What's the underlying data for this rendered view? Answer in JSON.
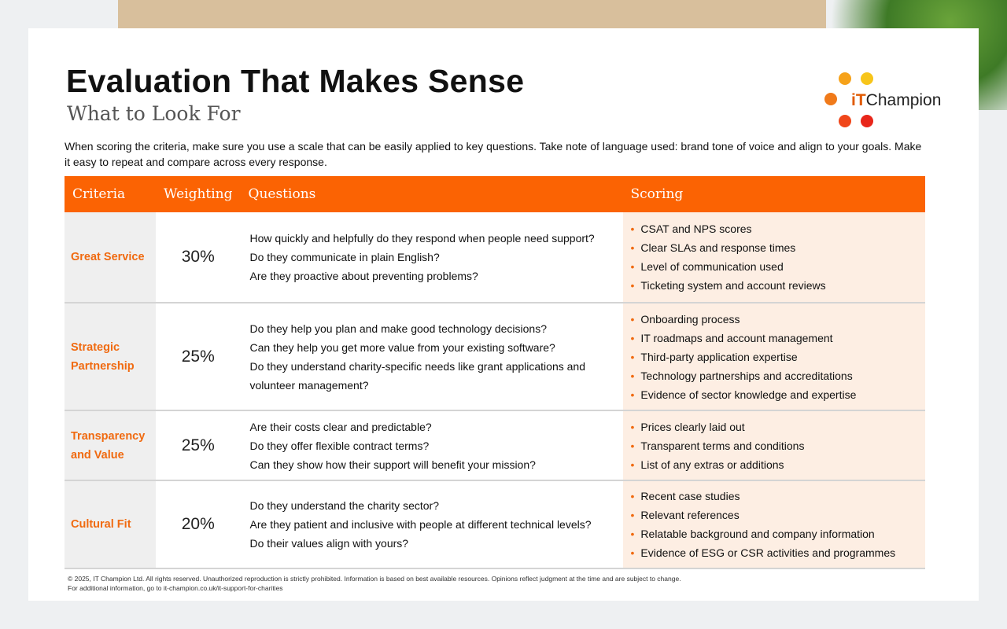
{
  "header": {
    "title": "Evaluation That Makes Sense",
    "subtitle": "What to Look For",
    "logo": "iT Champion",
    "intro": "When scoring the criteria, make sure you use a scale that can be easily applied to key questions. Take note of language used: brand tone of voice and align to your goals. Make it easy to repeat and compare across every response."
  },
  "colors": {
    "accent": "#fb6303",
    "scoring_bg": "#fdeee3",
    "criteria_bg": "#efefef"
  },
  "table": {
    "columns": [
      "Criteria",
      "Weighting",
      "Questions",
      "Scoring"
    ],
    "rows": [
      {
        "criteria": "Great Service",
        "weighting": "30%",
        "questions": [
          "How quickly and helpfully do they respond when people need support?",
          "Do they communicate in plain English?",
          "Are they proactive about preventing problems?"
        ],
        "scoring": [
          "CSAT and NPS scores",
          "Clear SLAs and response times",
          "Level of communication used",
          "Ticketing system and account reviews"
        ]
      },
      {
        "criteria": "Strategic Partnership",
        "weighting": "25%",
        "questions": [
          "Do they help you plan and make good technology decisions?",
          "Can they help you get more value from your existing software?",
          "Do they understand charity-specific needs like grant applications and volunteer management?"
        ],
        "scoring": [
          "Onboarding process",
          "IT roadmaps and account management",
          "Third-party application expertise",
          "Technology partnerships and accreditations",
          "Evidence of sector knowledge and expertise"
        ]
      },
      {
        "criteria": "Transparency and Value",
        "weighting": "25%",
        "questions": [
          "Are their costs clear and predictable?",
          "Do they offer flexible contract terms?",
          "Can they show how their support will benefit your mission?"
        ],
        "scoring": [
          "Prices clearly laid out",
          "Transparent terms and conditions",
          "List of any extras or additions"
        ]
      },
      {
        "criteria": "Cultural Fit",
        "weighting": "20%",
        "questions": [
          "Do they understand the charity sector?",
          "Are they patient and inclusive with people at different technical levels?",
          "Do their values align with yours?"
        ],
        "scoring": [
          "Recent case studies",
          "Relevant references",
          "Relatable background and company information",
          "Evidence of ESG or CSR activities and programmes"
        ]
      }
    ]
  },
  "footer": {
    "line1": "© 2025, IT Champion Ltd. All rights reserved. Unauthorized reproduction is strictly prohibited. Information is based on best available resources.  Opinions reflect judgment at the time and are subject to change.",
    "line2": "For additional information, go to it-champion.co.uk/it-support-for-charities"
  }
}
